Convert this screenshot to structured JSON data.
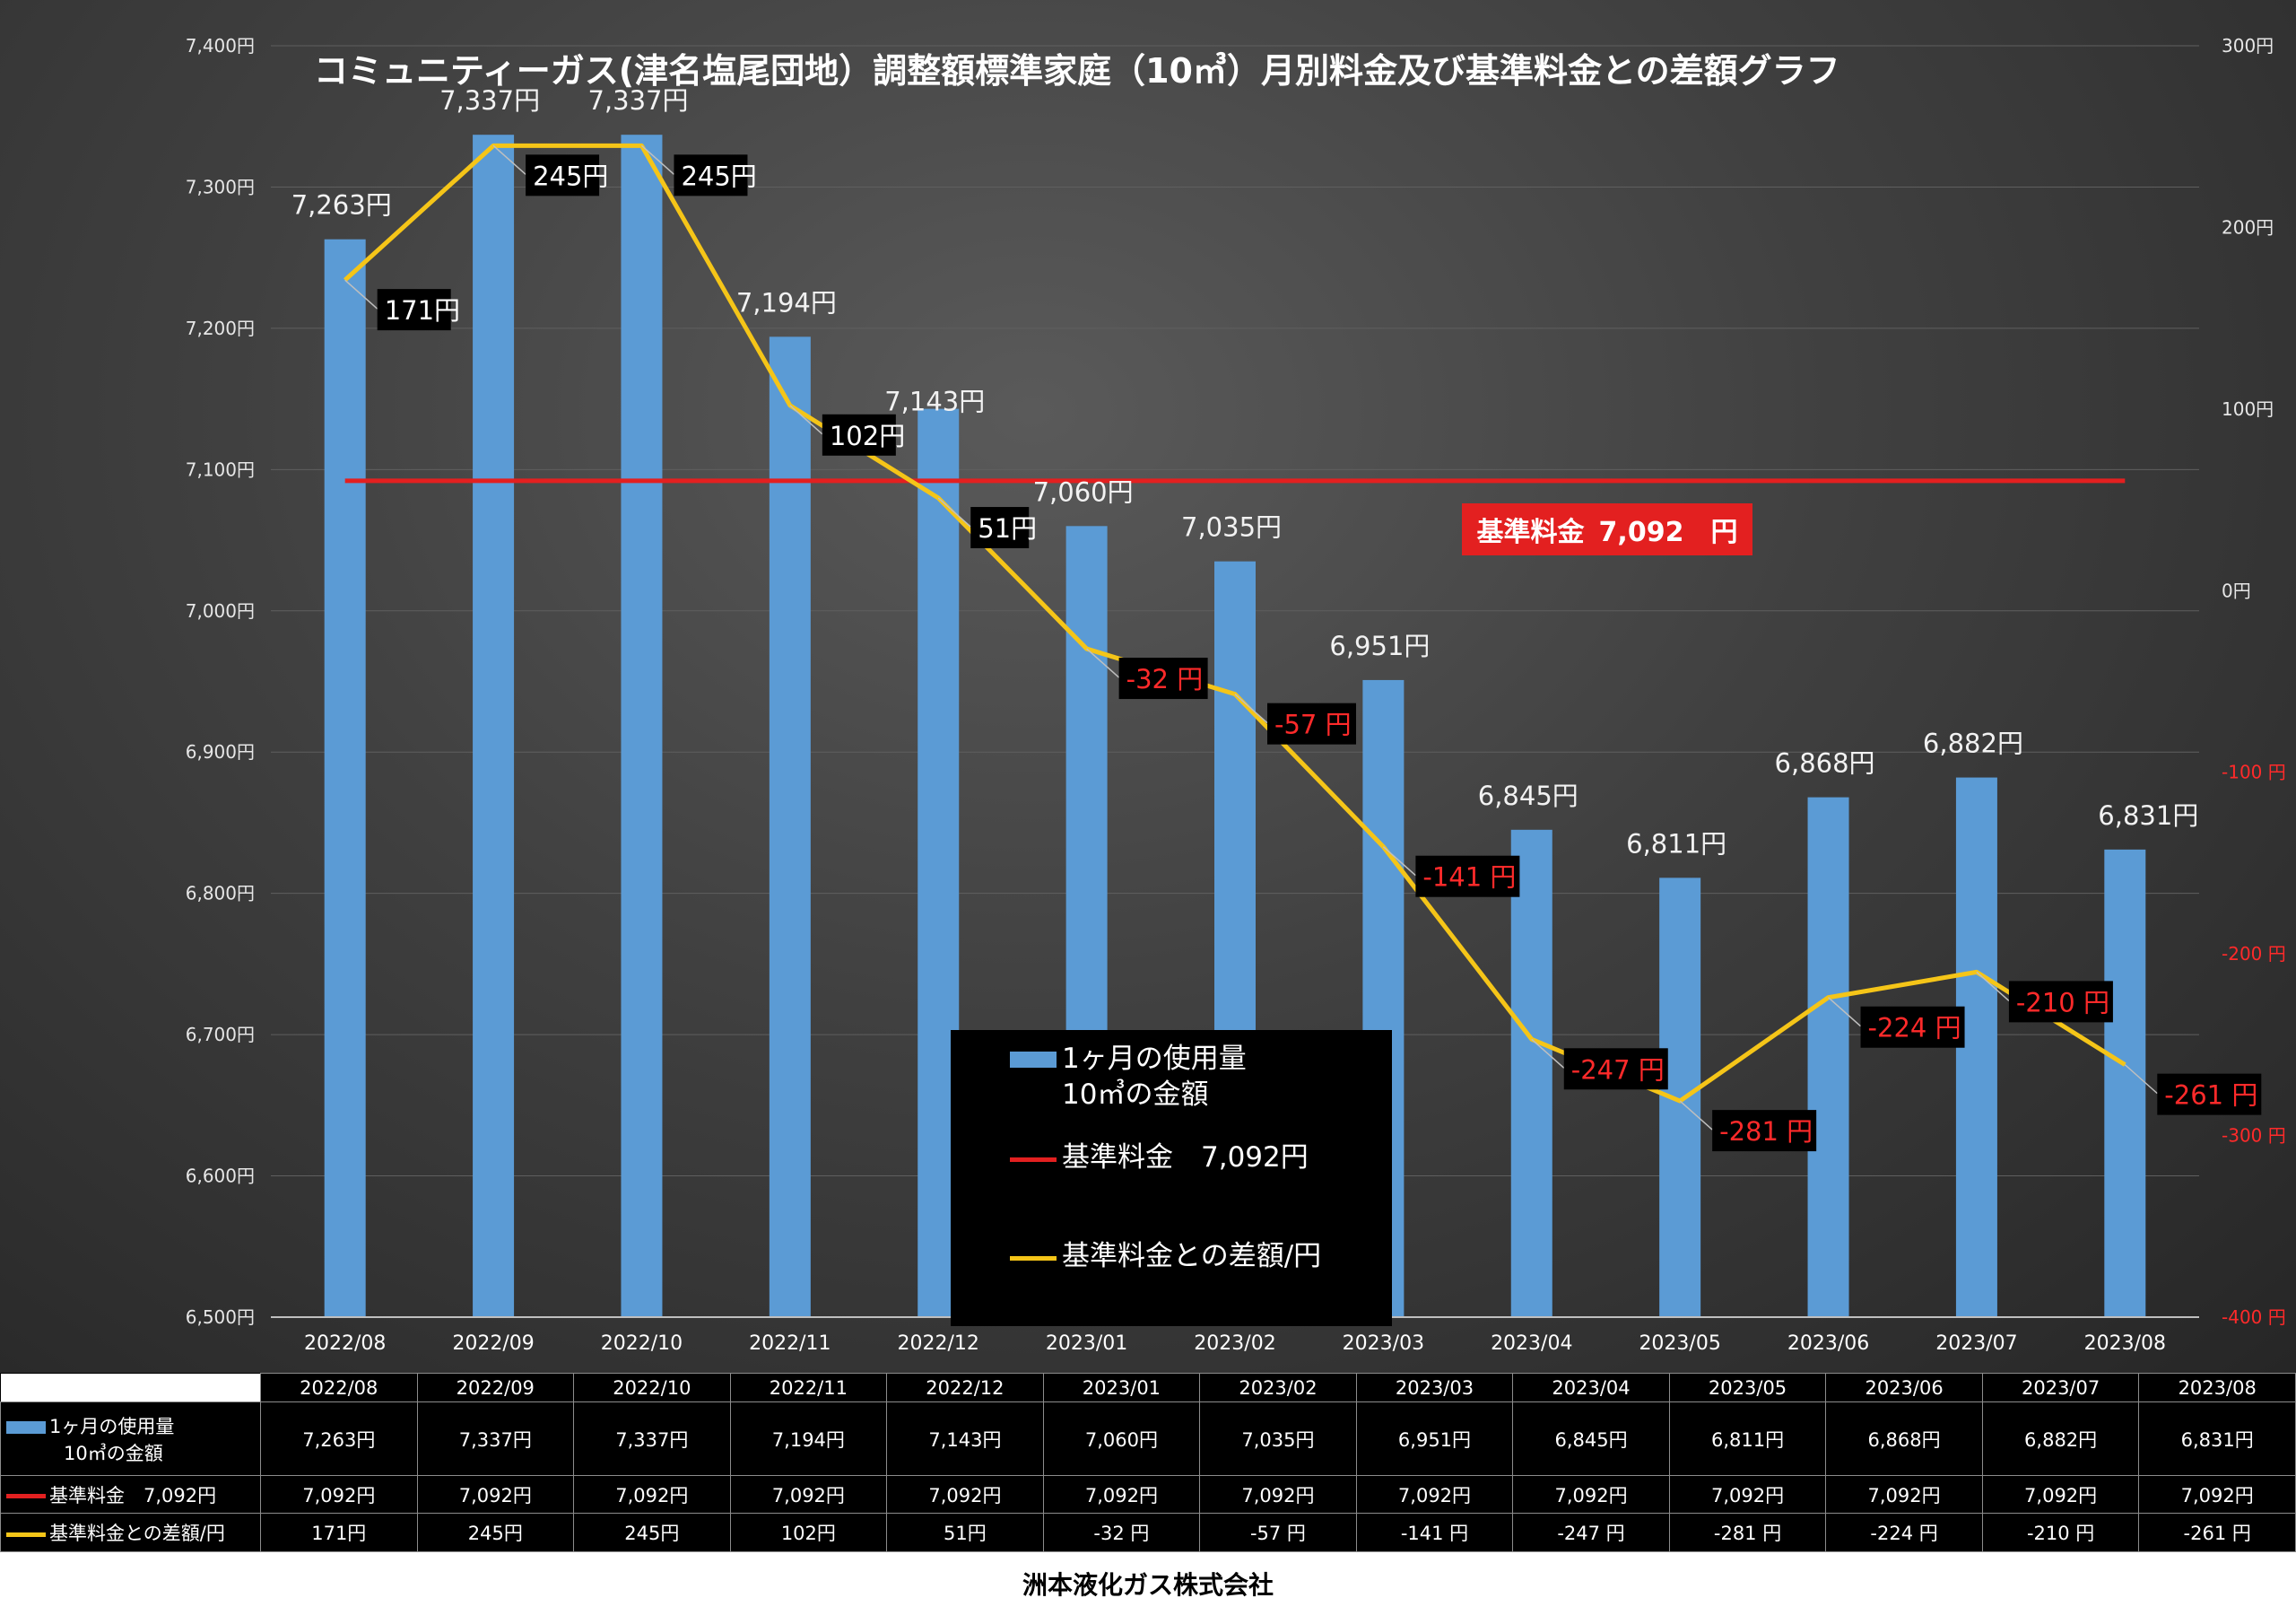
{
  "title": "コミュニティーガス(津名塩尾団地）調整額標準家庭（10㎥）月別料金及び基準料金との差額グラフ",
  "standard_box": {
    "label": "基準料金",
    "value": "7,092　円"
  },
  "legend": {
    "bar_line1": "1ヶ月の使用量",
    "bar_line2": "10㎥の金額",
    "red": "基準料金　7,092円",
    "yellow": "基準料金との差額/円"
  },
  "colors": {
    "bar": "#5b9bd5",
    "standard_line": "#e32020",
    "diff_line": "#f5c518",
    "negative_text": "#ff2a2a"
  },
  "chart_data": {
    "type": "bar",
    "categories": [
      "2022/08",
      "2022/09",
      "2022/10",
      "2022/11",
      "2022/12",
      "2023/01",
      "2023/02",
      "2023/03",
      "2023/04",
      "2023/05",
      "2023/06",
      "2023/07",
      "2023/08"
    ],
    "series": [
      {
        "name": "1ヶ月の使用量 10㎥の金額",
        "type": "bar",
        "axis": "left",
        "values": [
          7263,
          7337,
          7337,
          7194,
          7143,
          7060,
          7035,
          6951,
          6845,
          6811,
          6868,
          6882,
          6831
        ],
        "labels": [
          "7,263円",
          "7,337円",
          "7,337円",
          "7,194円",
          "7,143円",
          "7,060円",
          "7,035円",
          "6,951円",
          "6,845円",
          "6,811円",
          "6,868円",
          "6,882円",
          "6,831円"
        ]
      },
      {
        "name": "基準料金　7,092円",
        "type": "line",
        "axis": "left",
        "values": [
          7092,
          7092,
          7092,
          7092,
          7092,
          7092,
          7092,
          7092,
          7092,
          7092,
          7092,
          7092,
          7092
        ]
      },
      {
        "name": "基準料金との差額/円",
        "type": "line",
        "axis": "right",
        "values": [
          171,
          245,
          245,
          102,
          51,
          -32,
          -57,
          -141,
          -247,
          -281,
          -224,
          -210,
          -261
        ],
        "labels": [
          "171円",
          "245円",
          "245円",
          "102円",
          "51円",
          "-32 円",
          "-57 円",
          "-141 円",
          "-247 円",
          "-281 円",
          "-224 円",
          "-210 円",
          "-261 円"
        ]
      }
    ],
    "ylim_left": [
      6500,
      7400
    ],
    "ylim_right": [
      -400,
      300
    ],
    "left_ticks": [
      "6,500円",
      "6,600円",
      "6,700円",
      "6,800円",
      "6,900円",
      "7,000円",
      "7,100円",
      "7,200円",
      "7,300円",
      "7,400円"
    ],
    "right_ticks": [
      "-400 円",
      "-300 円",
      "-200 円",
      "-100 円",
      "0円",
      "100円",
      "200円",
      "300円"
    ],
    "grid": true,
    "legend_position": "bottom-center"
  },
  "table": {
    "row1_head_line1": "1ヶ月の使用量",
    "row1_head_line2": "10㎥の金額",
    "row2_head": "基準料金　7,092円",
    "row3_head": "基準料金との差額/円",
    "row1": [
      "7,263円",
      "7,337円",
      "7,337円",
      "7,194円",
      "7,143円",
      "7,060円",
      "7,035円",
      "6,951円",
      "6,845円",
      "6,811円",
      "6,868円",
      "6,882円",
      "6,831円"
    ],
    "row2": [
      "7,092円",
      "7,092円",
      "7,092円",
      "7,092円",
      "7,092円",
      "7,092円",
      "7,092円",
      "7,092円",
      "7,092円",
      "7,092円",
      "7,092円",
      "7,092円",
      "7,092円"
    ],
    "row3": [
      "171円",
      "245円",
      "245円",
      "102円",
      "51円",
      "-32 円",
      "-57 円",
      "-141 円",
      "-247 円",
      "-281 円",
      "-224 円",
      "-210 円",
      "-261 円"
    ]
  },
  "footer": "洲本液化ガス株式会社"
}
